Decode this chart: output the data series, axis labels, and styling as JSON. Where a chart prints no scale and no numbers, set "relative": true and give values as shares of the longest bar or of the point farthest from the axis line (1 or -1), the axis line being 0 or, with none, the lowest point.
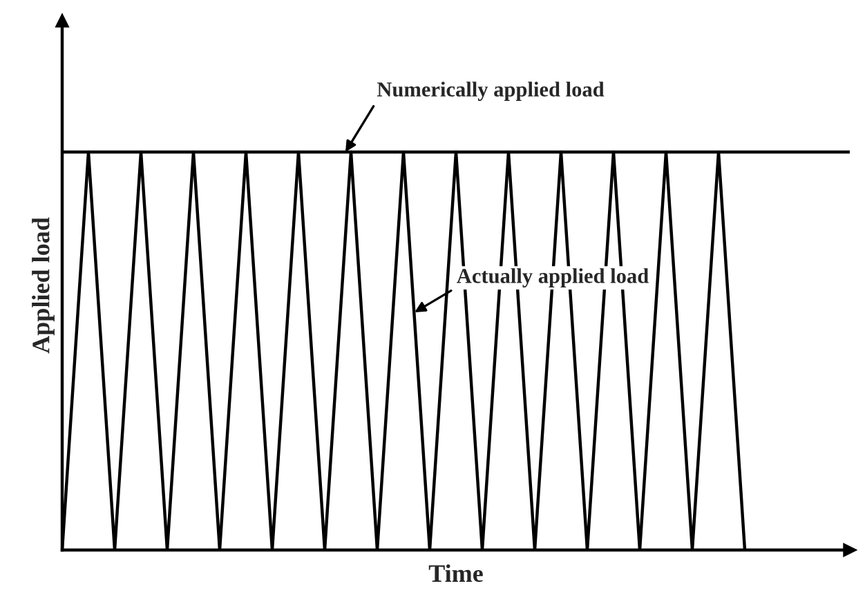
{
  "chart_data": {
    "type": "line",
    "relative": true,
    "xlabel": "Time",
    "ylabel": "Applied load",
    "categories": [
      null,
      null,
      null,
      null,
      null,
      null,
      null,
      null,
      null,
      null,
      null,
      null,
      null,
      null,
      null,
      null,
      null,
      null,
      null,
      null,
      null,
      null,
      null,
      null,
      null,
      null,
      null,
      null,
      null,
      null,
      null
    ],
    "series": [
      {
        "name": "Numerically applied load",
        "color": "#000000",
        "values": [
          1,
          1,
          1,
          1,
          1,
          1,
          1,
          1,
          1,
          1,
          1,
          1,
          1,
          1,
          1,
          1,
          1,
          1,
          1,
          1,
          1,
          1,
          1,
          1,
          1,
          1,
          1,
          1,
          1,
          1,
          1
        ]
      },
      {
        "name": "Actually applied load",
        "color": "#000000",
        "values": [
          0,
          1,
          0,
          1,
          0,
          1,
          0,
          1,
          0,
          1,
          0,
          1,
          0,
          1,
          0,
          1,
          0,
          1,
          0,
          1,
          0,
          1,
          0,
          1,
          0,
          1,
          0,
          null,
          null,
          null,
          null
        ]
      }
    ],
    "grid": false,
    "legend": false,
    "marker": "none",
    "line_style": "solid"
  }
}
